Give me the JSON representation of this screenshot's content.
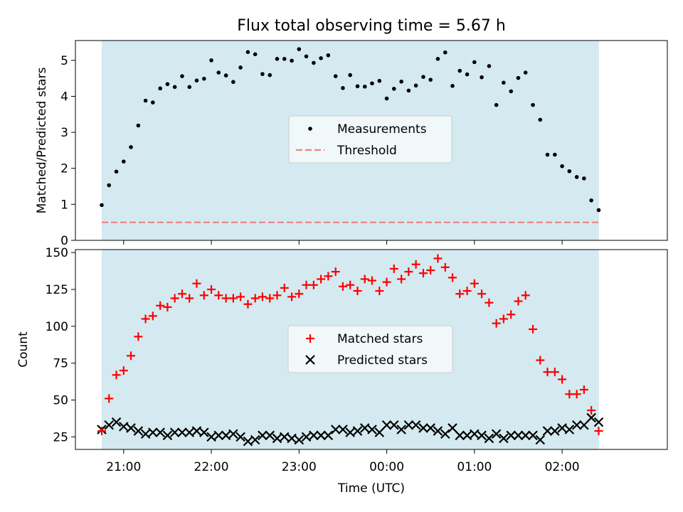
{
  "figure": {
    "title": "Flux total observing time = 5.67 h",
    "xlabel": "Time (UTC)",
    "x_ticks": [
      "21:00",
      "22:00",
      "23:00",
      "00:00",
      "01:00",
      "02:00"
    ],
    "x_tick_hours": [
      21,
      22,
      23,
      24,
      25,
      26
    ],
    "xlim": [
      20.45,
      27.2
    ],
    "shade_range": [
      20.75,
      26.42
    ],
    "shade_color": "#d4eaf0",
    "colors": {
      "measurement": "#000000",
      "threshold": "#f08080",
      "matched": "#ff0000",
      "predicted": "#000000"
    }
  },
  "chart_data": [
    {
      "type": "scatter",
      "ylabel": "Matched/Predicted stars",
      "ylim": [
        0,
        5.55
      ],
      "y_ticks": [
        0,
        1,
        2,
        3,
        4,
        5
      ],
      "legend": {
        "placement": "center",
        "entries": [
          "Measurements",
          "Threshold"
        ]
      },
      "threshold": 0.5,
      "x": [
        20.75,
        20.833,
        20.917,
        21.0,
        21.083,
        21.167,
        21.25,
        21.333,
        21.417,
        21.5,
        21.583,
        21.667,
        21.75,
        21.833,
        21.917,
        22.0,
        22.083,
        22.167,
        22.25,
        22.333,
        22.417,
        22.5,
        22.583,
        22.667,
        22.75,
        22.833,
        22.917,
        23.0,
        23.083,
        23.167,
        23.25,
        23.333,
        23.417,
        23.5,
        23.583,
        23.667,
        23.75,
        23.833,
        23.917,
        24.0,
        24.083,
        24.167,
        24.25,
        24.333,
        24.417,
        24.5,
        24.583,
        24.667,
        24.75,
        24.833,
        24.917,
        25.0,
        25.083,
        25.167,
        25.25,
        25.333,
        25.417,
        25.5,
        25.583,
        25.667,
        25.75,
        25.833,
        25.917,
        26.0,
        26.083,
        26.167,
        26.25,
        26.333,
        26.417
      ],
      "series": [
        {
          "name": "Measurements",
          "values": [
            0.98,
            1.53,
            1.91,
            2.19,
            2.59,
            3.19,
            3.88,
            3.83,
            4.22,
            4.34,
            4.26,
            4.56,
            4.26,
            4.44,
            4.49,
            5.0,
            4.66,
            4.58,
            4.4,
            4.8,
            5.23,
            5.17,
            4.62,
            4.59,
            5.04,
            5.04,
            4.99,
            5.31,
            5.11,
            4.93,
            5.06,
            5.14,
            4.56,
            4.23,
            4.59,
            4.28,
            4.27,
            4.36,
            4.43,
            3.94,
            4.21,
            4.41,
            4.16,
            4.3,
            4.54,
            4.46,
            5.04,
            5.22,
            4.29,
            4.71,
            4.61,
            4.95,
            4.53,
            4.84,
            3.76,
            4.38,
            4.14,
            4.51,
            4.66,
            3.76,
            3.35,
            2.38,
            2.38,
            2.06,
            1.92,
            1.76,
            1.72,
            1.11,
            0.84
          ]
        }
      ]
    },
    {
      "type": "scatter",
      "ylabel": "Count",
      "ylim": [
        16.5,
        152
      ],
      "y_ticks": [
        25,
        50,
        75,
        100,
        125,
        150
      ],
      "legend": {
        "placement": "center",
        "entries": [
          "Matched stars",
          "Predicted stars"
        ]
      },
      "x": [
        20.75,
        20.833,
        20.917,
        21.0,
        21.083,
        21.167,
        21.25,
        21.333,
        21.417,
        21.5,
        21.583,
        21.667,
        21.75,
        21.833,
        21.917,
        22.0,
        22.083,
        22.167,
        22.25,
        22.333,
        22.417,
        22.5,
        22.583,
        22.667,
        22.75,
        22.833,
        22.917,
        23.0,
        23.083,
        23.167,
        23.25,
        23.333,
        23.417,
        23.5,
        23.583,
        23.667,
        23.75,
        23.833,
        23.917,
        24.0,
        24.083,
        24.167,
        24.25,
        24.333,
        24.417,
        24.5,
        24.583,
        24.667,
        24.75,
        24.833,
        24.917,
        25.0,
        25.083,
        25.167,
        25.25,
        25.333,
        25.417,
        25.5,
        25.583,
        25.667,
        25.75,
        25.833,
        25.917,
        26.0,
        26.083,
        26.167,
        26.25,
        26.333,
        26.417
      ],
      "series": [
        {
          "name": "Matched stars",
          "marker": "plus",
          "values": [
            29,
            51,
            67,
            70,
            80,
            93,
            105,
            107,
            114,
            113,
            119,
            122,
            119,
            129,
            121,
            125,
            121,
            119,
            119,
            120,
            115,
            119,
            120,
            119,
            121,
            126,
            120,
            122,
            128,
            128,
            132,
            134,
            137,
            127,
            128,
            124,
            132,
            131,
            124,
            130,
            139,
            132,
            137,
            142,
            136,
            138,
            146,
            140,
            133,
            122,
            124,
            129,
            122,
            116,
            102,
            105,
            108,
            117,
            121,
            98,
            77,
            69,
            69,
            64,
            54,
            54,
            57,
            43,
            29
          ]
        },
        {
          "name": "Predicted stars",
          "marker": "x",
          "values": [
            30,
            33,
            35,
            32,
            31,
            29,
            27,
            28,
            28,
            26,
            28,
            28,
            28,
            29,
            28,
            25,
            26,
            26,
            27,
            25,
            22,
            23,
            26,
            26,
            24,
            25,
            24,
            23,
            25,
            26,
            26,
            26,
            30,
            30,
            28,
            29,
            31,
            30,
            28,
            33,
            33,
            30,
            33,
            33,
            31,
            31,
            29,
            27,
            31,
            26,
            26,
            27,
            26,
            24,
            27,
            24,
            26,
            26,
            26,
            26,
            23,
            29,
            29,
            31,
            30,
            33,
            33,
            38,
            35
          ]
        }
      ]
    }
  ]
}
